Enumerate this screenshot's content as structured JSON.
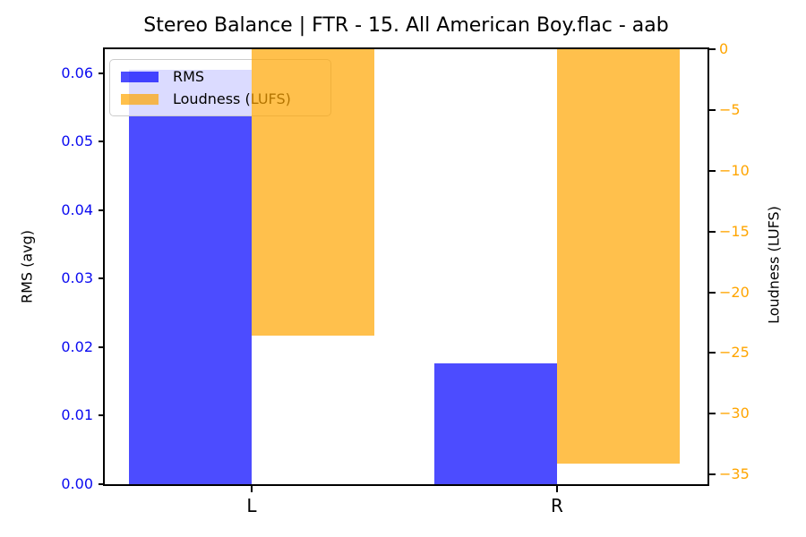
{
  "chart_data": {
    "type": "bar",
    "title": "Stereo Balance | FTR - 15. All American Boy.flac - aab",
    "categories": [
      "L",
      "R"
    ],
    "series": [
      {
        "name": "RMS",
        "axis": "left",
        "color": "rgba(0,0,255,0.7)",
        "values": [
          0.0605,
          0.0176
        ]
      },
      {
        "name": "Loudness (LUFS)",
        "axis": "right",
        "color": "rgba(255,165,0,0.7)",
        "values": [
          -23.6,
          -34.1
        ]
      }
    ],
    "left_axis": {
      "label": "RMS (avg)",
      "color": "#0b0bf0",
      "tick_values": [
        0,
        0.01,
        0.02,
        0.03,
        0.04,
        0.05,
        0.06
      ],
      "tick_labels": [
        "0.00",
        "0.01",
        "0.02",
        "0.03",
        "0.04",
        "0.05",
        "0.06"
      ],
      "range": [
        0,
        0.0635
      ]
    },
    "right_axis": {
      "label": "Loudness (LUFS)",
      "color": "#ffa500",
      "tick_values": [
        0,
        -5,
        -10,
        -15,
        -20,
        -25,
        -30,
        -35
      ],
      "tick_labels": [
        "0",
        "−5",
        "−10",
        "−15",
        "−20",
        "−25",
        "−30",
        "−35"
      ],
      "range": [
        -35.8,
        0
      ]
    },
    "legend": {
      "position": "upper left",
      "entries": [
        "RMS",
        "Loudness (LUFS)"
      ]
    },
    "grid": false,
    "spine_color": "#000000"
  }
}
